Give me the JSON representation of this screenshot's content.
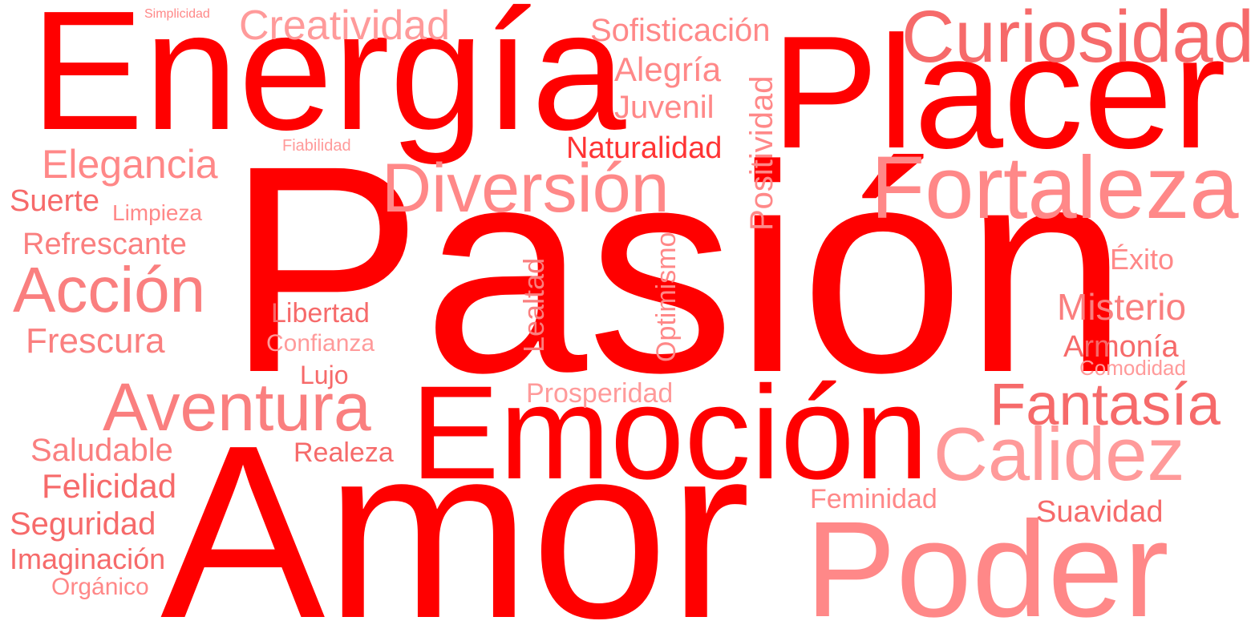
{
  "word_cloud": {
    "palette": {
      "strong": "#ff0000",
      "red": "#ff3434",
      "mid": "#f66a6a",
      "light": "#fa7f7f",
      "pink": "#ff8888",
      "pale": "#ff9a9a"
    },
    "words": {
      "pasion": "Pasión",
      "amor": "Amor",
      "energia": "Energía",
      "placer": "Placer",
      "emocion": "Emoción",
      "poder": "Poder",
      "fortaleza": "Fortaleza",
      "curiosidad": "Curiosidad",
      "diversion": "Diversión",
      "aventura": "Aventura",
      "calidez": "Calidez",
      "accion": "Acción",
      "fantasia": "Fantasía",
      "creatividad": "Creatividad",
      "elegancia": "Elegancia",
      "misterio": "Misterio",
      "sofisticacion": "Sofisticación",
      "alegria": "Alegría",
      "juvenil": "Juvenil",
      "naturalidad": "Naturalidad",
      "positividad": "Positividad",
      "optimismo": "Optimismo",
      "lealtad": "Lealtad",
      "refrescante": "Refrescante",
      "frescura": "Frescura",
      "suerte": "Suerte",
      "limpieza": "Limpieza",
      "libertad": "Libertad",
      "confianza": "Confianza",
      "lujo": "Lujo",
      "prosperidad": "Prosperidad",
      "realeza": "Realeza",
      "saludable": "Saludable",
      "felicidad": "Felicidad",
      "seguridad": "Seguridad",
      "imaginacion": "Imaginación",
      "organico": "Orgánico",
      "feminidad": "Feminidad",
      "suavidad": "Suavidad",
      "exito": "Éxito",
      "armonia": "Armonía",
      "comodidad": "Comodidad",
      "simplicidad": "Simplicidad",
      "fiabilidad": "Fiabilidad"
    }
  }
}
